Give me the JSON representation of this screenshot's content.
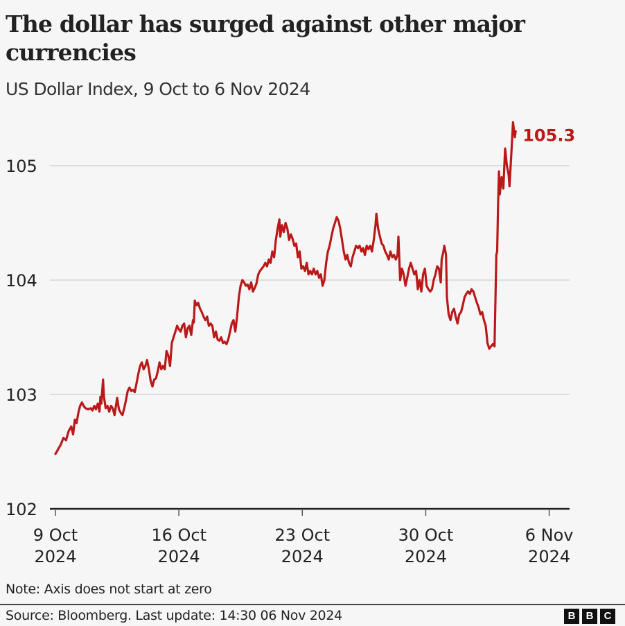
{
  "header": {
    "title": "The dollar has surged against other major currencies",
    "subtitle": "US Dollar Index, 9 Oct to 6 Nov 2024"
  },
  "footer": {
    "note": "Note: Axis does not start at zero",
    "source": "Source: Bloomberg. Last update: 14:30 06 Nov 2024",
    "logo": [
      "B",
      "B",
      "C"
    ]
  },
  "colors": {
    "line": "#bb1919",
    "grid": "#d5d5d5",
    "axis": "#222222",
    "background": "#f6f6f6"
  },
  "chart_data": {
    "type": "line",
    "title": "The dollar has surged against other major currencies",
    "subtitle": "US Dollar Index, 9 Oct to 6 Nov 2024",
    "xlabel": "",
    "ylabel": "",
    "ylim": [
      102,
      105.4
    ],
    "yticks": [
      "102",
      "103",
      "104",
      "105"
    ],
    "xticks": [
      {
        "day": 0,
        "line1": "9 Oct",
        "line2": "2024"
      },
      {
        "day": 7,
        "line1": "16 Oct",
        "line2": "2024"
      },
      {
        "day": 14,
        "line1": "23 Oct",
        "line2": "2024"
      },
      {
        "day": 21,
        "line1": "30 Oct",
        "line2": "2024"
      },
      {
        "day": 28,
        "line1": "6 Nov",
        "line2": "2024"
      }
    ],
    "grid": true,
    "end_label": "105.3",
    "series": [
      {
        "name": "US Dollar Index",
        "x_unit": "days since 9 Oct 2024",
        "points": [
          [
            0,
            102.48
          ],
          [
            0.15,
            102.52
          ],
          [
            0.3,
            102.56
          ],
          [
            0.45,
            102.62
          ],
          [
            0.6,
            102.6
          ],
          [
            0.75,
            102.68
          ],
          [
            0.9,
            102.72
          ],
          [
            1.0,
            102.65
          ],
          [
            1.1,
            102.78
          ],
          [
            1.2,
            102.75
          ],
          [
            1.3,
            102.84
          ],
          [
            1.4,
            102.9
          ],
          [
            1.5,
            102.93
          ],
          [
            1.6,
            102.9
          ],
          [
            1.7,
            102.88
          ],
          [
            1.85,
            102.87
          ],
          [
            2.0,
            102.88
          ],
          [
            2.1,
            102.86
          ],
          [
            2.2,
            102.9
          ],
          [
            2.3,
            102.87
          ],
          [
            2.4,
            102.92
          ],
          [
            2.5,
            102.85
          ],
          [
            2.55,
            102.98
          ],
          [
            2.6,
            102.92
          ],
          [
            2.7,
            103.13
          ],
          [
            2.75,
            102.98
          ],
          [
            2.85,
            102.88
          ],
          [
            2.95,
            102.9
          ],
          [
            3.05,
            102.85
          ],
          [
            3.15,
            102.9
          ],
          [
            3.25,
            102.88
          ],
          [
            3.35,
            102.82
          ],
          [
            3.45,
            102.92
          ],
          [
            3.5,
            102.97
          ],
          [
            3.6,
            102.87
          ],
          [
            3.7,
            102.84
          ],
          [
            3.8,
            102.82
          ],
          [
            3.9,
            102.88
          ],
          [
            4.0,
            102.95
          ],
          [
            4.1,
            103.03
          ],
          [
            4.2,
            103.06
          ],
          [
            4.3,
            103.03
          ],
          [
            4.4,
            103.04
          ],
          [
            4.5,
            103.02
          ],
          [
            4.6,
            103.1
          ],
          [
            4.7,
            103.18
          ],
          [
            4.8,
            103.25
          ],
          [
            4.9,
            103.28
          ],
          [
            5.0,
            103.22
          ],
          [
            5.1,
            103.25
          ],
          [
            5.2,
            103.3
          ],
          [
            5.3,
            103.22
          ],
          [
            5.4,
            103.12
          ],
          [
            5.5,
            103.07
          ],
          [
            5.6,
            103.13
          ],
          [
            5.7,
            103.14
          ],
          [
            5.8,
            103.2
          ],
          [
            5.9,
            103.28
          ],
          [
            6.0,
            103.22
          ],
          [
            6.1,
            103.25
          ],
          [
            6.2,
            103.22
          ],
          [
            6.3,
            103.38
          ],
          [
            6.4,
            103.34
          ],
          [
            6.5,
            103.25
          ],
          [
            6.6,
            103.45
          ],
          [
            6.7,
            103.5
          ],
          [
            6.8,
            103.55
          ],
          [
            6.9,
            103.6
          ],
          [
            7.0,
            103.57
          ],
          [
            7.1,
            103.55
          ],
          [
            7.2,
            103.6
          ],
          [
            7.3,
            103.62
          ],
          [
            7.4,
            103.5
          ],
          [
            7.5,
            103.58
          ],
          [
            7.6,
            103.6
          ],
          [
            7.7,
            103.52
          ],
          [
            7.8,
            103.65
          ],
          [
            7.85,
            103.63
          ],
          [
            7.9,
            103.82
          ],
          [
            8.0,
            103.78
          ],
          [
            8.1,
            103.8
          ],
          [
            8.2,
            103.75
          ],
          [
            8.3,
            103.72
          ],
          [
            8.4,
            103.68
          ],
          [
            8.5,
            103.65
          ],
          [
            8.6,
            103.68
          ],
          [
            8.7,
            103.6
          ],
          [
            8.8,
            103.62
          ],
          [
            8.9,
            103.6
          ],
          [
            9.0,
            103.5
          ],
          [
            9.1,
            103.55
          ],
          [
            9.2,
            103.48
          ],
          [
            9.3,
            103.47
          ],
          [
            9.4,
            103.5
          ],
          [
            9.5,
            103.45
          ],
          [
            9.6,
            103.46
          ],
          [
            9.7,
            103.44
          ],
          [
            9.8,
            103.48
          ],
          [
            9.9,
            103.55
          ],
          [
            10.0,
            103.62
          ],
          [
            10.1,
            103.65
          ],
          [
            10.2,
            103.55
          ],
          [
            10.3,
            103.68
          ],
          [
            10.4,
            103.85
          ],
          [
            10.5,
            103.95
          ],
          [
            10.6,
            104.0
          ],
          [
            10.7,
            103.98
          ],
          [
            10.8,
            103.95
          ],
          [
            10.9,
            103.96
          ],
          [
            11.0,
            103.92
          ],
          [
            11.1,
            103.98
          ],
          [
            11.2,
            103.9
          ],
          [
            11.3,
            103.93
          ],
          [
            11.4,
            103.97
          ],
          [
            11.5,
            104.05
          ],
          [
            11.6,
            104.08
          ],
          [
            11.7,
            104.1
          ],
          [
            11.8,
            104.12
          ],
          [
            11.9,
            104.15
          ],
          [
            12.0,
            104.12
          ],
          [
            12.1,
            104.18
          ],
          [
            12.2,
            104.15
          ],
          [
            12.3,
            104.25
          ],
          [
            12.4,
            104.2
          ],
          [
            12.5,
            104.35
          ],
          [
            12.6,
            104.45
          ],
          [
            12.7,
            104.53
          ],
          [
            12.75,
            104.38
          ],
          [
            12.85,
            104.48
          ],
          [
            12.95,
            104.42
          ],
          [
            13.05,
            104.5
          ],
          [
            13.15,
            104.45
          ],
          [
            13.25,
            104.35
          ],
          [
            13.35,
            104.4
          ],
          [
            13.45,
            104.36
          ],
          [
            13.55,
            104.3
          ],
          [
            13.65,
            104.32
          ],
          [
            13.75,
            104.2
          ],
          [
            13.85,
            104.25
          ],
          [
            13.95,
            104.1
          ],
          [
            14.05,
            104.12
          ],
          [
            14.15,
            104.08
          ],
          [
            14.25,
            104.15
          ],
          [
            14.35,
            104.05
          ],
          [
            14.45,
            104.08
          ],
          [
            14.55,
            104.05
          ],
          [
            14.65,
            104.1
          ],
          [
            14.75,
            104.05
          ],
          [
            14.85,
            104.08
          ],
          [
            14.95,
            104.02
          ],
          [
            15.05,
            104.05
          ],
          [
            15.15,
            103.95
          ],
          [
            15.25,
            104.0
          ],
          [
            15.35,
            104.15
          ],
          [
            15.45,
            104.25
          ],
          [
            15.55,
            104.3
          ],
          [
            15.65,
            104.38
          ],
          [
            15.75,
            104.45
          ],
          [
            15.85,
            104.5
          ],
          [
            15.95,
            104.55
          ],
          [
            16.05,
            104.52
          ],
          [
            16.15,
            104.45
          ],
          [
            16.25,
            104.35
          ],
          [
            16.35,
            104.25
          ],
          [
            16.45,
            104.18
          ],
          [
            16.55,
            104.22
          ],
          [
            16.65,
            104.15
          ],
          [
            16.75,
            104.12
          ],
          [
            16.85,
            104.2
          ],
          [
            16.95,
            104.25
          ],
          [
            17.05,
            104.3
          ],
          [
            17.15,
            104.28
          ],
          [
            17.25,
            104.3
          ],
          [
            17.35,
            104.25
          ],
          [
            17.45,
            104.28
          ],
          [
            17.55,
            104.22
          ],
          [
            17.65,
            104.3
          ],
          [
            17.75,
            104.27
          ],
          [
            17.85,
            104.3
          ],
          [
            17.95,
            104.25
          ],
          [
            18.05,
            104.35
          ],
          [
            18.15,
            104.48
          ],
          [
            18.2,
            104.58
          ],
          [
            18.3,
            104.45
          ],
          [
            18.4,
            104.38
          ],
          [
            18.5,
            104.32
          ],
          [
            18.6,
            104.3
          ],
          [
            18.7,
            104.25
          ],
          [
            18.8,
            104.22
          ],
          [
            18.9,
            104.18
          ],
          [
            19.0,
            104.25
          ],
          [
            19.1,
            104.2
          ],
          [
            19.2,
            104.22
          ],
          [
            19.3,
            104.18
          ],
          [
            19.4,
            104.22
          ],
          [
            19.45,
            104.38
          ],
          [
            19.55,
            104.0
          ],
          [
            19.65,
            104.1
          ],
          [
            19.75,
            104.05
          ],
          [
            19.85,
            103.95
          ],
          [
            19.95,
            104.02
          ],
          [
            20.05,
            104.1
          ],
          [
            20.15,
            104.15
          ],
          [
            20.25,
            104.1
          ],
          [
            20.35,
            104.05
          ],
          [
            20.45,
            104.08
          ],
          [
            20.55,
            103.92
          ],
          [
            20.65,
            104.0
          ],
          [
            20.75,
            103.9
          ],
          [
            20.85,
            104.05
          ],
          [
            20.95,
            104.1
          ],
          [
            21.05,
            103.95
          ],
          [
            21.15,
            103.92
          ],
          [
            21.25,
            103.9
          ],
          [
            21.35,
            103.92
          ],
          [
            21.45,
            104.0
          ],
          [
            21.55,
            104.05
          ],
          [
            21.65,
            104.12
          ],
          [
            21.75,
            104.1
          ],
          [
            21.85,
            103.98
          ],
          [
            21.9,
            104.18
          ],
          [
            22.0,
            104.25
          ],
          [
            22.05,
            104.3
          ],
          [
            22.15,
            104.22
          ],
          [
            22.2,
            103.85
          ],
          [
            22.3,
            103.7
          ],
          [
            22.4,
            103.65
          ],
          [
            22.5,
            103.72
          ],
          [
            22.6,
            103.75
          ],
          [
            22.7,
            103.68
          ],
          [
            22.8,
            103.62
          ],
          [
            22.9,
            103.7
          ],
          [
            23.0,
            103.72
          ],
          [
            23.1,
            103.78
          ],
          [
            23.2,
            103.85
          ],
          [
            23.3,
            103.88
          ],
          [
            23.4,
            103.9
          ],
          [
            23.5,
            103.88
          ],
          [
            23.6,
            103.92
          ],
          [
            23.7,
            103.9
          ],
          [
            23.8,
            103.85
          ],
          [
            23.9,
            103.8
          ],
          [
            24.0,
            103.76
          ],
          [
            24.1,
            103.7
          ],
          [
            24.2,
            103.72
          ],
          [
            24.3,
            103.65
          ],
          [
            24.4,
            103.6
          ],
          [
            24.5,
            103.45
          ],
          [
            24.6,
            103.4
          ],
          [
            24.7,
            103.42
          ],
          [
            24.8,
            103.44
          ],
          [
            24.9,
            103.42
          ],
          [
            25.0,
            104.22
          ],
          [
            25.05,
            104.25
          ],
          [
            25.1,
            104.65
          ],
          [
            25.15,
            104.95
          ],
          [
            25.2,
            104.75
          ],
          [
            25.3,
            104.9
          ],
          [
            25.4,
            104.8
          ],
          [
            25.5,
            105.15
          ],
          [
            25.6,
            105.0
          ],
          [
            25.7,
            104.92
          ],
          [
            25.75,
            104.82
          ],
          [
            25.85,
            105.1
          ],
          [
            25.95,
            105.38
          ],
          [
            26.05,
            105.25
          ],
          [
            26.1,
            105.3
          ]
        ]
      }
    ]
  }
}
